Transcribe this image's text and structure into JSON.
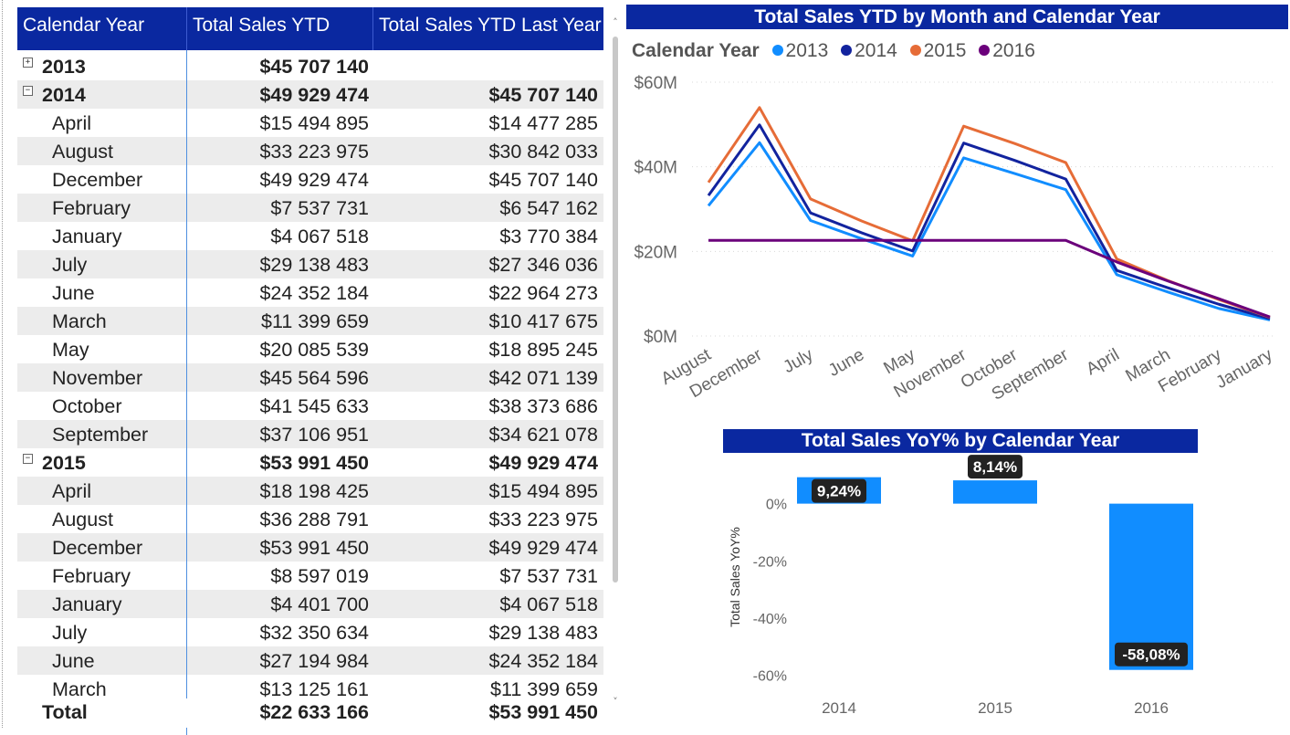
{
  "matrix": {
    "headers": [
      "Calendar Year",
      "Total Sales YTD",
      "Total Sales YTD Last Year"
    ],
    "rows": [
      {
        "type": "year",
        "expander": "+",
        "label": "2013",
        "ytd": "$45 707 140",
        "ly": ""
      },
      {
        "type": "year",
        "expander": "−",
        "label": "2014",
        "ytd": "$49 929 474",
        "ly": "$45 707 140"
      },
      {
        "type": "month",
        "label": "April",
        "ytd": "$15 494 895",
        "ly": "$14 477 285"
      },
      {
        "type": "month",
        "label": "August",
        "ytd": "$33 223 975",
        "ly": "$30 842 033"
      },
      {
        "type": "month",
        "label": "December",
        "ytd": "$49 929 474",
        "ly": "$45 707 140"
      },
      {
        "type": "month",
        "label": "February",
        "ytd": "$7 537 731",
        "ly": "$6 547 162"
      },
      {
        "type": "month",
        "label": "January",
        "ytd": "$4 067 518",
        "ly": "$3 770 384"
      },
      {
        "type": "month",
        "label": "July",
        "ytd": "$29 138 483",
        "ly": "$27 346 036"
      },
      {
        "type": "month",
        "label": "June",
        "ytd": "$24 352 184",
        "ly": "$22 964 273"
      },
      {
        "type": "month",
        "label": "March",
        "ytd": "$11 399 659",
        "ly": "$10 417 675"
      },
      {
        "type": "month",
        "label": "May",
        "ytd": "$20 085 539",
        "ly": "$18 895 245"
      },
      {
        "type": "month",
        "label": "November",
        "ytd": "$45 564 596",
        "ly": "$42 071 139"
      },
      {
        "type": "month",
        "label": "October",
        "ytd": "$41 545 633",
        "ly": "$38 373 686"
      },
      {
        "type": "month",
        "label": "September",
        "ytd": "$37 106 951",
        "ly": "$34 621 078"
      },
      {
        "type": "year",
        "expander": "−",
        "label": "2015",
        "ytd": "$53 991 450",
        "ly": "$49 929 474"
      },
      {
        "type": "month",
        "label": "April",
        "ytd": "$18 198 425",
        "ly": "$15 494 895"
      },
      {
        "type": "month",
        "label": "August",
        "ytd": "$36 288 791",
        "ly": "$33 223 975"
      },
      {
        "type": "month",
        "label": "December",
        "ytd": "$53 991 450",
        "ly": "$49 929 474"
      },
      {
        "type": "month",
        "label": "February",
        "ytd": "$8 597 019",
        "ly": "$7 537 731"
      },
      {
        "type": "month",
        "label": "January",
        "ytd": "$4 401 700",
        "ly": "$4 067 518"
      },
      {
        "type": "month",
        "label": "July",
        "ytd": "$32 350 634",
        "ly": "$29 138 483"
      },
      {
        "type": "month",
        "label": "June",
        "ytd": "$27 194 984",
        "ly": "$24 352 184"
      },
      {
        "type": "month",
        "label": "March",
        "ytd": "$13 125 161",
        "ly": "$11 399 659"
      }
    ],
    "total": {
      "label": "Total",
      "ytd": "$22 633 166",
      "ly": "$53 991 450"
    },
    "scroll": {
      "up": "˄",
      "down": "˅"
    }
  },
  "colors": {
    "header_bg": "#0a28a0",
    "s2013": "#118dff",
    "s2014": "#12239e",
    "s2015": "#e66c37",
    "s2016": "#6b007b",
    "bar": "#118dff"
  },
  "chart_data": [
    {
      "type": "line",
      "title": "Total Sales YTD by Month and Calendar Year",
      "legend_title": "Calendar Year",
      "legend_position": "top-left",
      "categories": [
        "August",
        "December",
        "July",
        "June",
        "May",
        "November",
        "October",
        "September",
        "April",
        "March",
        "February",
        "January"
      ],
      "y_ticks": [
        "$0M",
        "$20M",
        "$40M",
        "$60M"
      ],
      "ylim": [
        0,
        60
      ],
      "grid": true,
      "series": [
        {
          "name": "2013",
          "values": [
            30.8,
            45.7,
            27.3,
            23.0,
            18.9,
            42.1,
            38.4,
            34.6,
            14.5,
            10.4,
            6.5,
            3.8
          ]
        },
        {
          "name": "2014",
          "values": [
            33.2,
            49.9,
            29.1,
            24.4,
            20.1,
            45.6,
            41.5,
            37.1,
            15.5,
            11.4,
            7.5,
            4.1
          ]
        },
        {
          "name": "2015",
          "values": [
            36.3,
            54.0,
            32.4,
            27.2,
            22.5,
            49.6,
            45.5,
            41.0,
            18.2,
            13.1,
            8.6,
            4.4
          ]
        },
        {
          "name": "2016",
          "values": [
            22.6,
            22.6,
            22.6,
            22.6,
            22.6,
            22.6,
            22.6,
            22.6,
            17.5,
            13.0,
            8.8,
            4.5
          ]
        }
      ]
    },
    {
      "type": "bar",
      "title": "Total Sales YoY% by Calendar Year",
      "ylabel": "Total Sales YoY%",
      "categories": [
        "2014",
        "2015",
        "2016"
      ],
      "values": [
        9.24,
        8.14,
        -58.08
      ],
      "labels": [
        "9,24%",
        "8,14%",
        "-58,08%"
      ],
      "y_ticks": [
        "0%",
        "-20%",
        "-40%",
        "-60%"
      ],
      "ylim": [
        -62,
        12
      ]
    }
  ]
}
